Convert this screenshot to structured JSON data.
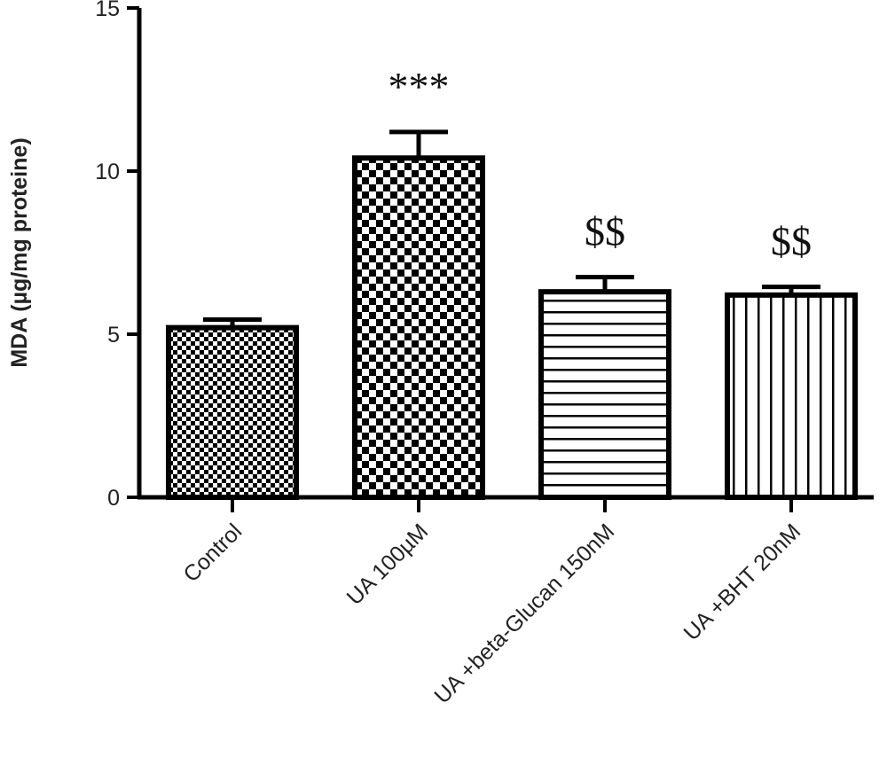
{
  "chart_data": {
    "type": "bar",
    "title": "",
    "xlabel": "",
    "ylabel": "MDA (µg/mg proteine)",
    "ylim": [
      0,
      15
    ],
    "yticks": [
      0,
      5,
      10,
      15
    ],
    "grid": false,
    "categories": [
      "Control",
      "UA 100µM",
      "UA +beta-Glucan 150nM",
      "UA +BHT 20nM"
    ],
    "values": [
      5.2,
      10.4,
      6.3,
      6.2
    ],
    "errors": [
      0.25,
      0.8,
      0.45,
      0.25
    ],
    "significance": [
      "",
      "***",
      "$$",
      "$$"
    ],
    "fill_patterns": [
      "fine-checkerboard",
      "coarse-checkerboard",
      "horizontal-stripes",
      "vertical-stripes"
    ],
    "colors": {
      "bar_stroke": "#000000",
      "bar_fill": "#ffffff",
      "text": "#222222"
    }
  }
}
